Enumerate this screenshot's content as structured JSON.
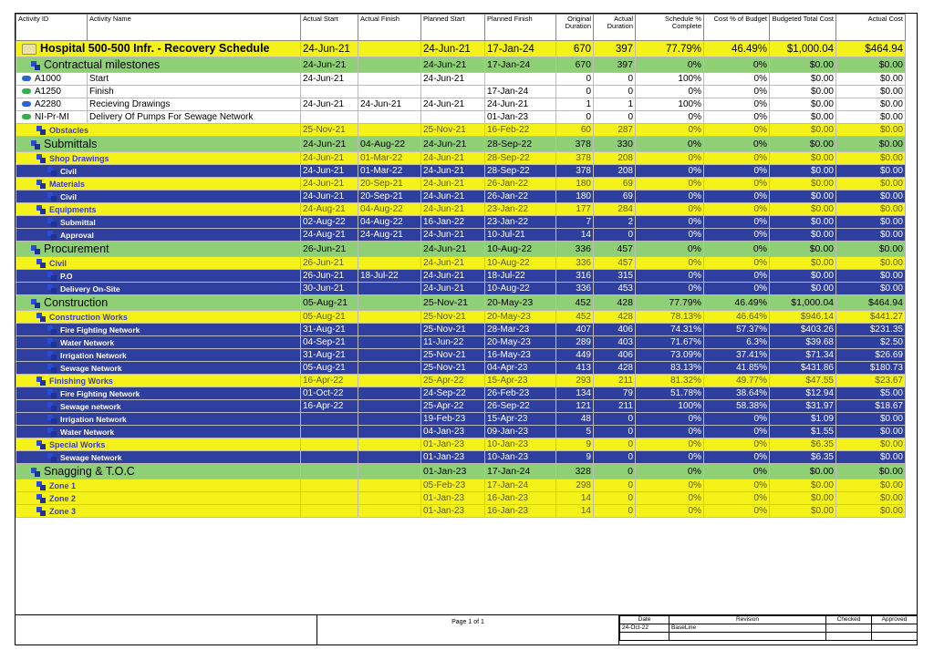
{
  "columns": [
    "Activity ID",
    "Activity Name",
    "Actual Start",
    "Actual Finish",
    "Planned Start",
    "Planned Finish",
    "Original Duration",
    "Actual Duration",
    "Schedule % Complete",
    "Cost % of Budget",
    "Budgeted Total Cost",
    "Actual Cost"
  ],
  "rows": [
    {
      "level": 1,
      "icon": "folder-icon",
      "id": "",
      "name": "Hospital 500-500 Infr. - Recovery Schedule",
      "as": "24-Jun-21",
      "af": "",
      "ps": "24-Jun-21",
      "pf": "17-Jan-24",
      "od": "670",
      "ad": "397",
      "sc": "77.79%",
      "cb": "46.49%",
      "bc": "$1,000.04",
      "ac": "$464.94"
    },
    {
      "level": 2,
      "icon": "wbs-icon",
      "id": "",
      "name": "Contractual milestones",
      "as": "24-Jun-21",
      "af": "",
      "ps": "24-Jun-21",
      "pf": "17-Jan-24",
      "od": "670",
      "ad": "397",
      "sc": "0%",
      "cb": "0%",
      "bc": "$0.00",
      "ac": "$0.00"
    },
    {
      "level": 5,
      "icon": "milestone-blue-icon",
      "id": "A1000",
      "name": "Start",
      "as": "24-Jun-21",
      "af": "",
      "ps": "24-Jun-21",
      "pf": "",
      "od": "0",
      "ad": "0",
      "sc": "100%",
      "cb": "0%",
      "bc": "$0.00",
      "ac": "$0.00"
    },
    {
      "level": 5,
      "icon": "milestone-green-icon",
      "id": "A1250",
      "name": "Finish",
      "as": "",
      "af": "",
      "ps": "",
      "pf": "17-Jan-24",
      "od": "0",
      "ad": "0",
      "sc": "0%",
      "cb": "0%",
      "bc": "$0.00",
      "ac": "$0.00"
    },
    {
      "level": 5,
      "icon": "milestone-blue-icon",
      "id": "A2280",
      "name": "Recieving Drawings",
      "as": "24-Jun-21",
      "af": "24-Jun-21",
      "ps": "24-Jun-21",
      "pf": "24-Jun-21",
      "od": "1",
      "ad": "1",
      "sc": "100%",
      "cb": "0%",
      "bc": "$0.00",
      "ac": "$0.00"
    },
    {
      "level": 5,
      "icon": "milestone-green-icon",
      "id": "NI-Pr-MI",
      "name": "Delivery Of Pumps For Sewage Network",
      "as": "",
      "af": "",
      "ps": "",
      "pf": "01-Jan-23",
      "od": "0",
      "ad": "0",
      "sc": "0%",
      "cb": "0%",
      "bc": "$0.00",
      "ac": "$0.00"
    },
    {
      "level": 3,
      "icon": "wbs-icon",
      "id": "",
      "name": "Obstacles",
      "as": "25-Nov-21",
      "af": "",
      "ps": "25-Nov-21",
      "pf": "16-Feb-22",
      "od": "60",
      "ad": "287",
      "sc": "0%",
      "cb": "0%",
      "bc": "$0.00",
      "ac": "$0.00"
    },
    {
      "level": 2,
      "icon": "wbs-icon",
      "id": "",
      "name": "Submittals",
      "as": "24-Jun-21",
      "af": "04-Aug-22",
      "ps": "24-Jun-21",
      "pf": "28-Sep-22",
      "od": "378",
      "ad": "330",
      "sc": "0%",
      "cb": "0%",
      "bc": "$0.00",
      "ac": "$0.00"
    },
    {
      "level": 3,
      "icon": "wbs-icon",
      "id": "",
      "name": "Shop Drawings",
      "as": "24-Jun-21",
      "af": "01-Mar-22",
      "ps": "24-Jun-21",
      "pf": "28-Sep-22",
      "od": "378",
      "ad": "208",
      "sc": "0%",
      "cb": "0%",
      "bc": "$0.00",
      "ac": "$0.00"
    },
    {
      "level": 4,
      "icon": "wbs-icon",
      "id": "",
      "name": "Civil",
      "as": "24-Jun-21",
      "af": "01-Mar-22",
      "ps": "24-Jun-21",
      "pf": "28-Sep-22",
      "od": "378",
      "ad": "208",
      "sc": "0%",
      "cb": "0%",
      "bc": "$0.00",
      "ac": "$0.00"
    },
    {
      "level": 3,
      "icon": "wbs-icon",
      "id": "",
      "name": "Materials",
      "as": "24-Jun-21",
      "af": "20-Sep-21",
      "ps": "24-Jun-21",
      "pf": "26-Jan-22",
      "od": "180",
      "ad": "69",
      "sc": "0%",
      "cb": "0%",
      "bc": "$0.00",
      "ac": "$0.00"
    },
    {
      "level": 4,
      "icon": "wbs-icon",
      "id": "",
      "name": "Civil",
      "as": "24-Jun-21",
      "af": "20-Sep-21",
      "ps": "24-Jun-21",
      "pf": "26-Jan-22",
      "od": "180",
      "ad": "69",
      "sc": "0%",
      "cb": "0%",
      "bc": "$0.00",
      "ac": "$0.00"
    },
    {
      "level": 3,
      "icon": "wbs-icon",
      "id": "",
      "name": "Equipments",
      "as": "24-Aug-21",
      "af": "04-Aug-22",
      "ps": "24-Jun-21",
      "pf": "23-Jan-22",
      "od": "177",
      "ad": "284",
      "sc": "0%",
      "cb": "0%",
      "bc": "$0.00",
      "ac": "$0.00"
    },
    {
      "level": 4,
      "icon": "wbs-icon",
      "id": "",
      "name": "Submittal",
      "as": "02-Aug-22",
      "af": "04-Aug-22",
      "ps": "16-Jan-22",
      "pf": "23-Jan-22",
      "od": "7",
      "ad": "2",
      "sc": "0%",
      "cb": "0%",
      "bc": "$0.00",
      "ac": "$0.00"
    },
    {
      "level": 4,
      "icon": "wbs-icon",
      "id": "",
      "name": "Approval",
      "as": "24-Aug-21",
      "af": "24-Aug-21",
      "ps": "24-Jun-21",
      "pf": "10-Jul-21",
      "od": "14",
      "ad": "0",
      "sc": "0%",
      "cb": "0%",
      "bc": "$0.00",
      "ac": "$0.00"
    },
    {
      "level": 2,
      "icon": "wbs-icon",
      "id": "",
      "name": "Procurement",
      "as": "26-Jun-21",
      "af": "",
      "ps": "24-Jun-21",
      "pf": "10-Aug-22",
      "od": "336",
      "ad": "457",
      "sc": "0%",
      "cb": "0%",
      "bc": "$0.00",
      "ac": "$0.00"
    },
    {
      "level": 3,
      "icon": "wbs-icon",
      "id": "",
      "name": "Civil",
      "as": "26-Jun-21",
      "af": "",
      "ps": "24-Jun-21",
      "pf": "10-Aug-22",
      "od": "336",
      "ad": "457",
      "sc": "0%",
      "cb": "0%",
      "bc": "$0.00",
      "ac": "$0.00"
    },
    {
      "level": 4,
      "icon": "wbs-icon",
      "id": "",
      "name": "P.O",
      "as": "26-Jun-21",
      "af": "18-Jul-22",
      "ps": "24-Jun-21",
      "pf": "18-Jul-22",
      "od": "316",
      "ad": "315",
      "sc": "0%",
      "cb": "0%",
      "bc": "$0.00",
      "ac": "$0.00"
    },
    {
      "level": 4,
      "icon": "wbs-icon",
      "id": "",
      "name": "Delivery On-Site",
      "as": "30-Jun-21",
      "af": "",
      "ps": "24-Jun-21",
      "pf": "10-Aug-22",
      "od": "336",
      "ad": "453",
      "sc": "0%",
      "cb": "0%",
      "bc": "$0.00",
      "ac": "$0.00"
    },
    {
      "level": 2,
      "icon": "wbs-icon",
      "id": "",
      "name": "Construction",
      "as": "05-Aug-21",
      "af": "",
      "ps": "25-Nov-21",
      "pf": "20-May-23",
      "od": "452",
      "ad": "428",
      "sc": "77.79%",
      "cb": "46.49%",
      "bc": "$1,000.04",
      "ac": "$464.94"
    },
    {
      "level": 3,
      "icon": "wbs-icon",
      "id": "",
      "name": "Construction Works",
      "as": "05-Aug-21",
      "af": "",
      "ps": "25-Nov-21",
      "pf": "20-May-23",
      "od": "452",
      "ad": "428",
      "sc": "78.13%",
      "cb": "46.64%",
      "bc": "$946.14",
      "ac": "$441.27"
    },
    {
      "level": 4,
      "icon": "wbs-icon",
      "id": "",
      "name": "Fire Fighting Network",
      "as": "31-Aug-21",
      "af": "",
      "ps": "25-Nov-21",
      "pf": "28-Mar-23",
      "od": "407",
      "ad": "406",
      "sc": "74.31%",
      "cb": "57.37%",
      "bc": "$403.26",
      "ac": "$231.35"
    },
    {
      "level": 4,
      "icon": "wbs-icon",
      "id": "",
      "name": "Water Network",
      "as": "04-Sep-21",
      "af": "",
      "ps": "11-Jun-22",
      "pf": "20-May-23",
      "od": "289",
      "ad": "403",
      "sc": "71.67%",
      "cb": "6.3%",
      "bc": "$39.68",
      "ac": "$2.50"
    },
    {
      "level": 4,
      "icon": "wbs-icon",
      "id": "",
      "name": "Irrigation Network",
      "as": "31-Aug-21",
      "af": "",
      "ps": "25-Nov-21",
      "pf": "16-May-23",
      "od": "449",
      "ad": "406",
      "sc": "73.09%",
      "cb": "37.41%",
      "bc": "$71.34",
      "ac": "$26.69"
    },
    {
      "level": 4,
      "icon": "wbs-icon",
      "id": "",
      "name": "Sewage Network",
      "as": "05-Aug-21",
      "af": "",
      "ps": "25-Nov-21",
      "pf": "04-Apr-23",
      "od": "413",
      "ad": "428",
      "sc": "83.13%",
      "cb": "41.85%",
      "bc": "$431.86",
      "ac": "$180.73"
    },
    {
      "level": 3,
      "icon": "wbs-icon",
      "id": "",
      "name": "Finishing Works",
      "as": "16-Apr-22",
      "af": "",
      "ps": "25-Apr-22",
      "pf": "15-Apr-23",
      "od": "293",
      "ad": "211",
      "sc": "81.32%",
      "cb": "49.77%",
      "bc": "$47.55",
      "ac": "$23.67"
    },
    {
      "level": 4,
      "icon": "wbs-icon",
      "id": "",
      "name": "Fire Fighting Network",
      "as": "01-Oct-22",
      "af": "",
      "ps": "24-Sep-22",
      "pf": "26-Feb-23",
      "od": "134",
      "ad": "79",
      "sc": "51.78%",
      "cb": "38.64%",
      "bc": "$12.94",
      "ac": "$5.00"
    },
    {
      "level": 4,
      "icon": "wbs-icon",
      "id": "",
      "name": "Sewage network",
      "as": "16-Apr-22",
      "af": "",
      "ps": "25-Apr-22",
      "pf": "26-Sep-22",
      "od": "121",
      "ad": "211",
      "sc": "100%",
      "cb": "58.38%",
      "bc": "$31.97",
      "ac": "$18.67"
    },
    {
      "level": 4,
      "icon": "wbs-icon",
      "id": "",
      "name": "Irrigation Network",
      "as": "",
      "af": "",
      "ps": "19-Feb-23",
      "pf": "15-Apr-23",
      "od": "48",
      "ad": "0",
      "sc": "0%",
      "cb": "0%",
      "bc": "$1.09",
      "ac": "$0.00"
    },
    {
      "level": 4,
      "icon": "wbs-icon",
      "id": "",
      "name": "Water Network",
      "as": "",
      "af": "",
      "ps": "04-Jan-23",
      "pf": "09-Jan-23",
      "od": "5",
      "ad": "0",
      "sc": "0%",
      "cb": "0%",
      "bc": "$1.55",
      "ac": "$0.00"
    },
    {
      "level": 3,
      "icon": "wbs-icon",
      "id": "",
      "name": "Special Works",
      "as": "",
      "af": "",
      "ps": "01-Jan-23",
      "pf": "10-Jan-23",
      "od": "9",
      "ad": "0",
      "sc": "0%",
      "cb": "0%",
      "bc": "$6.35",
      "ac": "$0.00"
    },
    {
      "level": 4,
      "icon": "wbs-icon",
      "id": "",
      "name": "Sewage Network",
      "as": "",
      "af": "",
      "ps": "01-Jan-23",
      "pf": "10-Jan-23",
      "od": "9",
      "ad": "0",
      "sc": "0%",
      "cb": "0%",
      "bc": "$6.35",
      "ac": "$0.00"
    },
    {
      "level": 2,
      "icon": "wbs-icon",
      "id": "",
      "name": "Snagging & T.O.C",
      "as": "",
      "af": "",
      "ps": "01-Jan-23",
      "pf": "17-Jan-24",
      "od": "328",
      "ad": "0",
      "sc": "0%",
      "cb": "0%",
      "bc": "$0.00",
      "ac": "$0.00"
    },
    {
      "level": 3,
      "icon": "wbs-icon",
      "id": "",
      "name": "Zone 1",
      "as": "",
      "af": "",
      "ps": "05-Feb-23",
      "pf": "17-Jan-24",
      "od": "298",
      "ad": "0",
      "sc": "0%",
      "cb": "0%",
      "bc": "$0.00",
      "ac": "$0.00"
    },
    {
      "level": 3,
      "icon": "wbs-icon",
      "id": "",
      "name": "Zone 2",
      "as": "",
      "af": "",
      "ps": "01-Jan-23",
      "pf": "16-Jan-23",
      "od": "14",
      "ad": "0",
      "sc": "0%",
      "cb": "0%",
      "bc": "$0.00",
      "ac": "$0.00"
    },
    {
      "level": 3,
      "icon": "wbs-icon",
      "id": "",
      "name": "Zone 3",
      "as": "",
      "af": "",
      "ps": "01-Jan-23",
      "pf": "16-Jan-23",
      "od": "14",
      "ad": "0",
      "sc": "0%",
      "cb": "0%",
      "bc": "$0.00",
      "ac": "$0.00"
    }
  ],
  "footer": {
    "page": "Page 1 of 1",
    "headers": [
      "Date",
      "Revision",
      "Checked",
      "Approved"
    ],
    "date": "24-Oct-22",
    "revision": "BaseLine"
  },
  "colors": {
    "summary_yellow": "#f5f219",
    "group_green": "#8fcf75",
    "wbs_blue": "#2f3f9f"
  }
}
